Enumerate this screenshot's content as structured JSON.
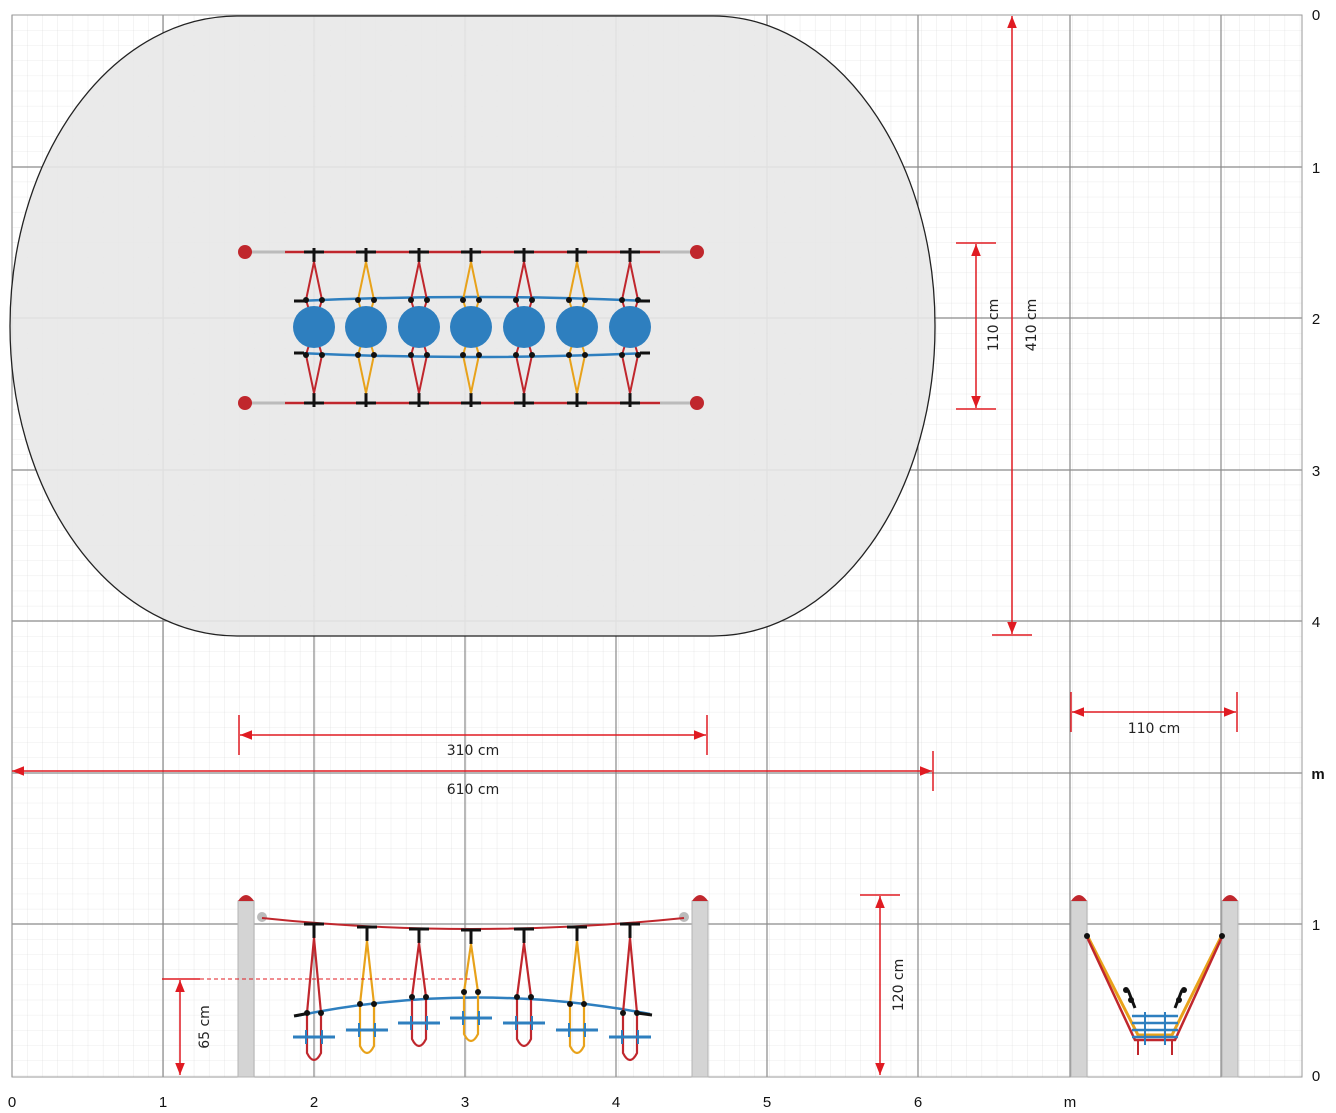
{
  "axes": {
    "bottom": [
      "0",
      "1",
      "2",
      "3",
      "4",
      "5",
      "6",
      "m"
    ],
    "right_top": [
      "0",
      "1",
      "2",
      "3",
      "4"
    ],
    "right_mid": "m",
    "right_bottom": [
      "1",
      "0"
    ]
  },
  "dimensions": {
    "top_height": "410 cm",
    "top_width": "110 cm",
    "span_posts": "310 cm",
    "span_total": "610 cm",
    "side_width": "110 cm",
    "post_height": "120 cm",
    "walk_height": "65 cm"
  },
  "colors": {
    "dimension": "#e01b22",
    "rope_red": "#c0272d",
    "rope_yellow": "#e8a21a",
    "disc_blue": "#2e7fbf",
    "safety_zone": "#e8e8e8",
    "post": "#d4d4d4"
  },
  "discs": 7
}
